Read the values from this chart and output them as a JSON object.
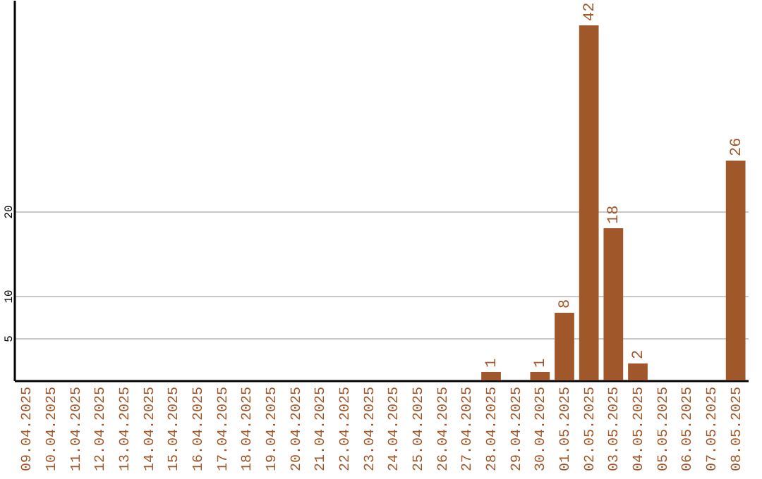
{
  "chart_data": {
    "type": "bar",
    "categories": [
      "09.04.2025",
      "10.04.2025",
      "11.04.2025",
      "12.04.2025",
      "13.04.2025",
      "14.04.2025",
      "15.04.2025",
      "16.04.2025",
      "17.04.2025",
      "18.04.2025",
      "19.04.2025",
      "20.04.2025",
      "21.04.2025",
      "22.04.2025",
      "23.04.2025",
      "24.04.2025",
      "25.04.2025",
      "26.04.2025",
      "27.04.2025",
      "28.04.2025",
      "29.04.2025",
      "30.04.2025",
      "01.05.2025",
      "02.05.2025",
      "03.05.2025",
      "04.05.2025",
      "05.05.2025",
      "06.05.2025",
      "07.05.2025",
      "08.05.2025"
    ],
    "values": [
      0,
      0,
      0,
      0,
      0,
      0,
      0,
      0,
      0,
      0,
      0,
      0,
      0,
      0,
      0,
      0,
      0,
      0,
      0,
      1,
      0,
      1,
      8,
      42,
      18,
      2,
      0,
      0,
      0,
      26
    ],
    "value_labels": [
      null,
      null,
      null,
      null,
      null,
      null,
      null,
      null,
      null,
      null,
      null,
      null,
      null,
      null,
      null,
      null,
      null,
      null,
      null,
      "1",
      null,
      "1",
      "8",
      "42",
      "18",
      "2",
      null,
      null,
      null,
      "26"
    ],
    "color": "#a0572a",
    "ylim": [
      0,
      45
    ],
    "yticks": [
      5,
      10,
      20
    ],
    "grid": "y"
  }
}
